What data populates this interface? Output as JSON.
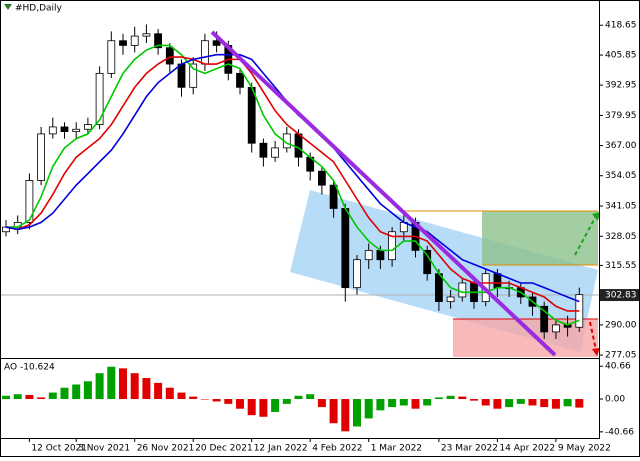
{
  "chart_data": [
    {
      "type": "candlestick",
      "title": "#HD,Daily",
      "categories": [
        null,
        null,
        "12 Oct 2021",
        null,
        null,
        null,
        "3 Nov 2021",
        null,
        null,
        null,
        null,
        "26 Nov 2021",
        null,
        null,
        null,
        null,
        "20 Dec 2021",
        null,
        null,
        null,
        null,
        "12 Jan 2022",
        null,
        null,
        null,
        null,
        "4 Feb 2022",
        null,
        null,
        null,
        null,
        "1 Mar 2022",
        null,
        null,
        null,
        null,
        null,
        "23 Mar 2022",
        null,
        null,
        null,
        null,
        "14 Apr 2022",
        null,
        null,
        null,
        null,
        "9 May 2022",
        null,
        null
      ],
      "open": [
        330,
        332,
        334,
        352,
        372,
        375,
        373,
        374,
        376,
        398,
        412,
        410,
        414,
        415,
        409,
        402,
        392,
        402,
        412,
        410,
        398,
        392,
        368,
        362,
        366,
        372,
        362,
        356,
        350,
        340,
        306,
        318,
        322,
        318,
        330,
        334,
        322,
        312,
        300,
        302,
        308,
        300,
        312,
        306,
        306,
        302,
        298,
        287,
        290,
        289
      ],
      "high": [
        335,
        337,
        355,
        375,
        379,
        377,
        377,
        379,
        401,
        416,
        415,
        418,
        419,
        417,
        411,
        404,
        405,
        415,
        416,
        412,
        400,
        394,
        370,
        369,
        375,
        374,
        364,
        358,
        352,
        342,
        320,
        325,
        324,
        332,
        338,
        336,
        324,
        314,
        305,
        310,
        310,
        314,
        314,
        309,
        308,
        304,
        300,
        292,
        294,
        306
      ],
      "low": [
        328,
        329,
        331,
        350,
        370,
        370,
        370,
        372,
        374,
        396,
        406,
        407,
        411,
        406,
        398,
        388,
        389,
        399,
        407,
        395,
        389,
        364,
        358,
        360,
        364,
        358,
        352,
        346,
        336,
        300,
        303,
        314,
        314,
        315,
        326,
        319,
        309,
        296,
        297,
        300,
        297,
        298,
        302,
        302,
        299,
        294,
        284,
        284,
        285,
        287
      ],
      "close": [
        332,
        334,
        352,
        372,
        375,
        373,
        374,
        376,
        398,
        412,
        410,
        414,
        415,
        409,
        402,
        392,
        402,
        412,
        410,
        398,
        392,
        368,
        362,
        366,
        372,
        362,
        356,
        350,
        340,
        306,
        318,
        322,
        318,
        330,
        334,
        322,
        312,
        300,
        302,
        308,
        300,
        312,
        306,
        306,
        302,
        298,
        287,
        290,
        289,
        303
      ],
      "series": [
        {
          "color": "#00c800",
          "values": [
            332,
            332,
            335,
            345,
            358,
            366,
            370,
            372,
            378,
            388,
            398,
            404,
            408,
            410,
            410,
            406,
            400,
            398,
            400,
            402,
            400,
            392,
            380,
            372,
            368,
            366,
            362,
            358,
            352,
            340,
            332,
            326,
            322,
            322,
            326,
            326,
            320,
            312,
            306,
            304,
            304,
            304,
            306,
            306,
            304,
            300,
            296,
            292,
            290,
            292
          ]
        },
        {
          "color": "#e00000",
          "values": [
            332,
            331,
            333,
            338,
            346,
            355,
            362,
            366,
            370,
            376,
            384,
            392,
            398,
            402,
            405,
            405,
            404,
            402,
            402,
            404,
            404,
            398,
            390,
            382,
            376,
            372,
            368,
            364,
            360,
            352,
            344,
            336,
            330,
            328,
            328,
            328,
            326,
            320,
            314,
            310,
            308,
            308,
            308,
            308,
            306,
            304,
            302,
            298,
            296,
            296
          ]
        },
        {
          "color": "#0000e0",
          "values": [
            332,
            331,
            332,
            334,
            338,
            344,
            350,
            355,
            360,
            365,
            372,
            380,
            388,
            394,
            398,
            402,
            404,
            405,
            406,
            406,
            406,
            404,
            398,
            392,
            386,
            380,
            376,
            372,
            366,
            360,
            354,
            348,
            342,
            338,
            334,
            332,
            330,
            326,
            322,
            318,
            316,
            314,
            312,
            310,
            308,
            308,
            306,
            304,
            302,
            300
          ]
        }
      ],
      "current_price": 302.83,
      "ylim": [
        275.8,
        428.2
      ],
      "yticks": [
        418.65,
        405.85,
        392.95,
        379.95,
        {
          "value": 367,
          "label": "367.00"
        },
        354.05,
        341.05,
        328.05,
        315.55,
        {
          "value": 290,
          "label": "290.00"
        },
        277.05
      ]
    },
    {
      "type": "bar",
      "title": "AO",
      "values": [
        4,
        6,
        5,
        2,
        8,
        14,
        18,
        22,
        32,
        40,
        38,
        32,
        26,
        20,
        14,
        8,
        3,
        0,
        -3,
        -6,
        -12,
        -20,
        -22,
        -16,
        -6,
        4,
        6,
        -10,
        -30,
        -40,
        -34,
        -24,
        -14,
        -10,
        -8,
        -12,
        -8,
        2,
        4,
        3,
        -2,
        -8,
        -12,
        -10,
        -6,
        -8,
        -10,
        -12,
        -9,
        -10.624
      ],
      "up_color": "#00a000",
      "down_color": "#e00000",
      "ylim": [
        -48.3,
        49.6
      ],
      "yticks": [
        40.66,
        {
          "value": 0,
          "label": "0.00"
        },
        -40.66
      ]
    }
  ]
}
